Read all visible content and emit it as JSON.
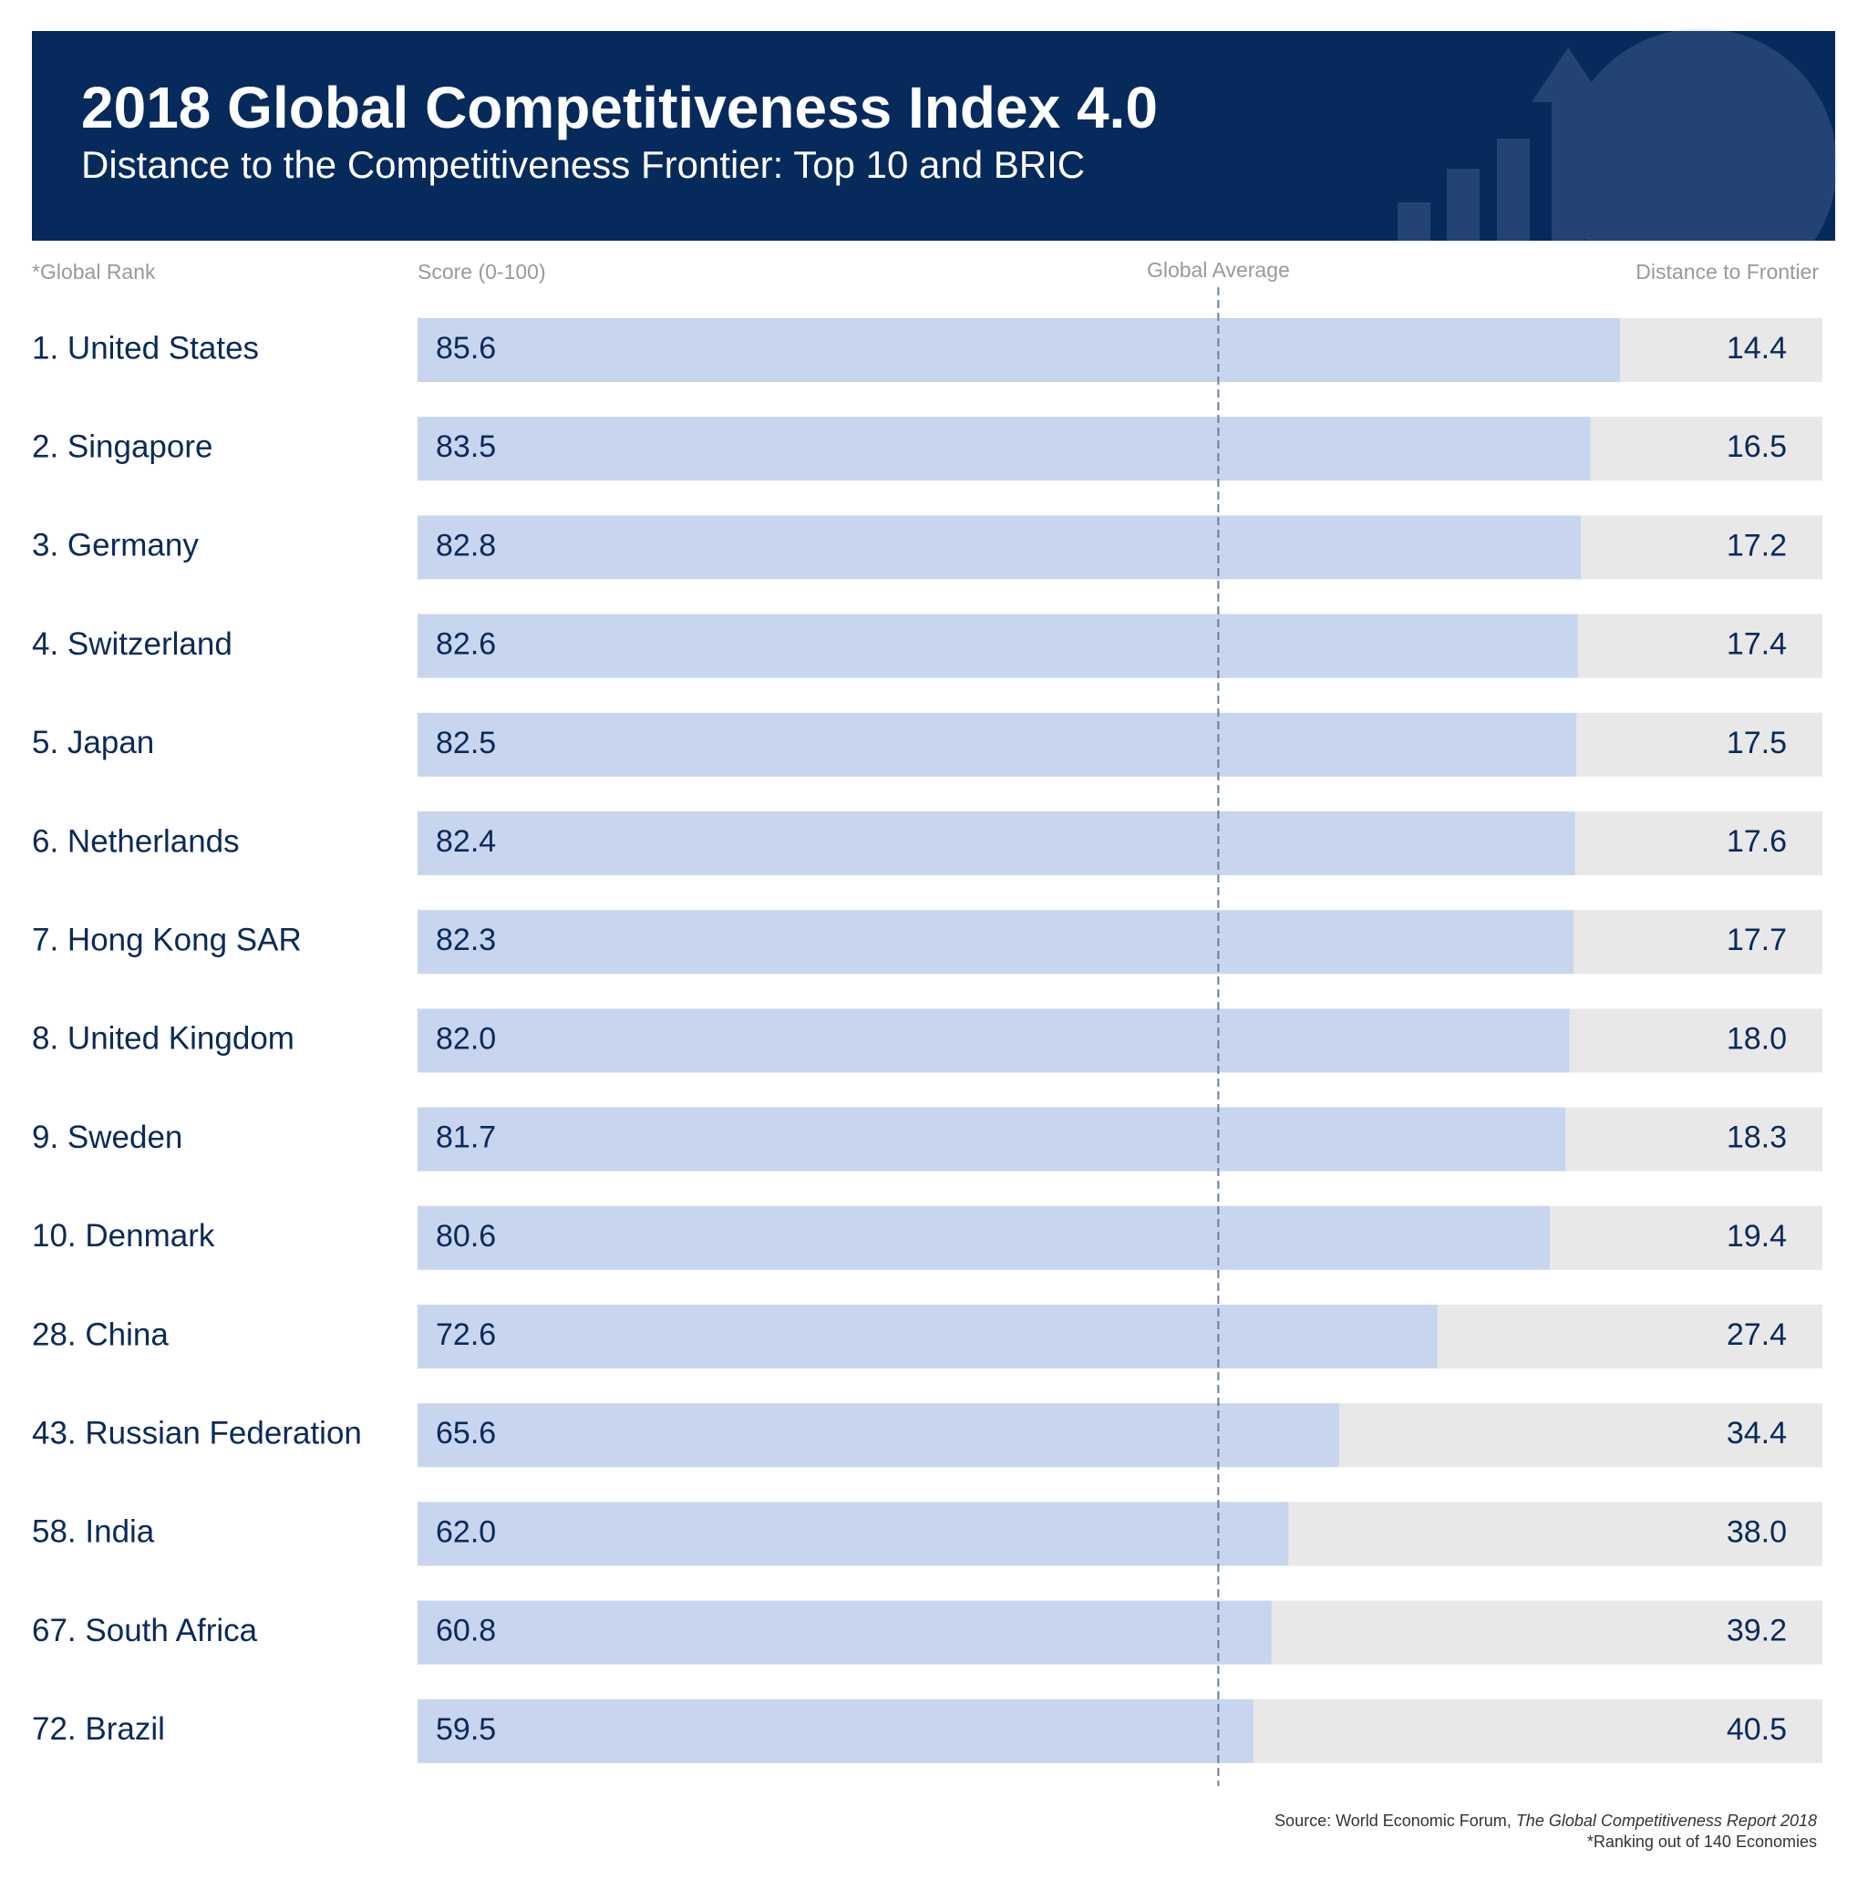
{
  "chart_data": {
    "type": "bar",
    "orientation": "horizontal",
    "stacked": true,
    "title": "2018 Global Competitiveness Index 4.0",
    "subtitle": "Distance to the Competitiveness Frontier: Top 10 and BRIC",
    "category_label": "*Global Rank",
    "categories": [
      "1. United States",
      "2. Singapore",
      "3. Germany",
      "4. Switzerland",
      "5. Japan",
      "6. Netherlands",
      "7. Hong Kong SAR",
      "8. United Kingdom",
      "9. Sweden",
      "10. Denmark",
      "28. China",
      "43. Russian Federation",
      "58. India",
      "67. South Africa",
      "72. Brazil"
    ],
    "series": [
      {
        "name": "Score (0-100)",
        "color": "#c8d5ee",
        "values": [
          85.6,
          83.5,
          82.8,
          82.6,
          82.5,
          82.4,
          82.3,
          82.0,
          81.7,
          80.6,
          72.6,
          65.6,
          62.0,
          60.8,
          59.5
        ],
        "value_labels": [
          "85.6",
          "83.5",
          "82.8",
          "82.6",
          "82.5",
          "82.4",
          "82.3",
          "82.0",
          "81.7",
          "80.6",
          "72.6",
          "65.6",
          "62.0",
          "60.8",
          "59.5"
        ]
      },
      {
        "name": "Distance to Frontier",
        "color": "#e8e8e8",
        "values": [
          14.4,
          16.5,
          17.2,
          17.4,
          17.5,
          17.6,
          17.7,
          18.0,
          18.3,
          19.4,
          27.4,
          34.4,
          38.0,
          39.2,
          40.5
        ],
        "value_labels": [
          "14.4",
          "16.5",
          "17.2",
          "17.4",
          "17.5",
          "17.6",
          "17.7",
          "18.0",
          "18.3",
          "19.4",
          "27.4",
          "34.4",
          "38.0",
          "39.2",
          "40.5"
        ]
      }
    ],
    "xlim": [
      0,
      100
    ],
    "reference_line": {
      "label": "Global Average",
      "value": 57
    },
    "source": [
      "Source: World Economic Forum, ",
      "The Global Competitiveness Report 2018"
    ],
    "note": "*Ranking out of 140 Economies"
  }
}
